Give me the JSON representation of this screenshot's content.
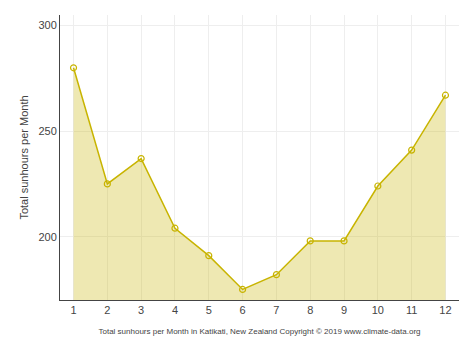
{
  "chart_data": {
    "type": "area",
    "x": [
      1,
      2,
      3,
      4,
      5,
      6,
      7,
      8,
      9,
      10,
      11,
      12
    ],
    "values": [
      280,
      225,
      237,
      204,
      191,
      175,
      182,
      198,
      198,
      224,
      241,
      267
    ],
    "color": "#c8b400",
    "marker": "circle",
    "xlabel": "Total sunhours per Month in Katikati, New Zealand Copyright © 2019 www.climate-data.org",
    "ylabel": "Total sunhours per Month",
    "xlim": [
      0.6,
      12.4
    ],
    "xticks": [
      1,
      2,
      3,
      4,
      5,
      6,
      7,
      8,
      9,
      10,
      11,
      12
    ],
    "ylim": [
      170,
      305
    ],
    "yticks": [
      200,
      250,
      300
    ],
    "grid": true
  }
}
